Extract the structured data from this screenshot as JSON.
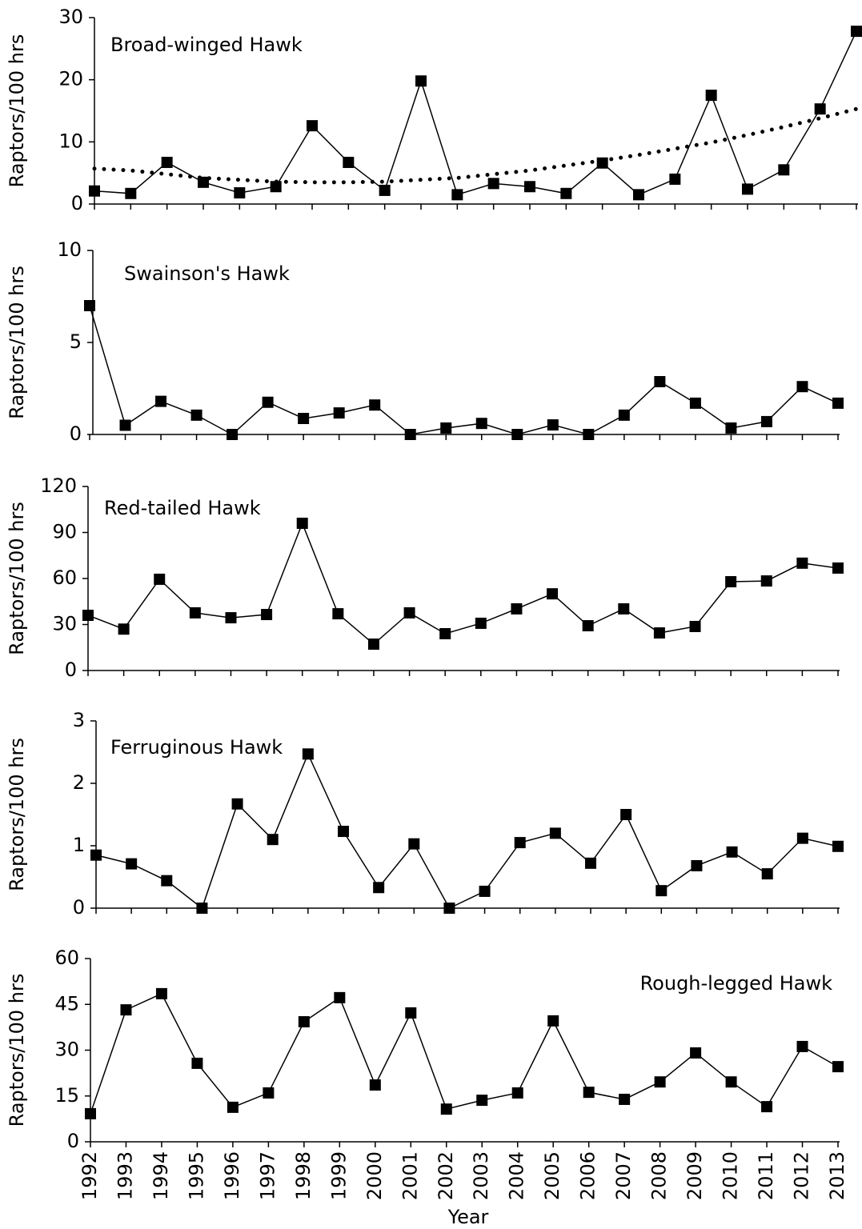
{
  "chart_data": [
    {
      "type": "line",
      "annotation": "Broad-winged Hawk",
      "ylabel": "Raptors/100 hrs",
      "ylim": [
        0,
        30
      ],
      "yticks": [
        0,
        10,
        20,
        30
      ],
      "series": [
        {
          "color": "#000000",
          "marker": "square",
          "values": [
            2.1,
            1.7,
            6.7,
            3.5,
            1.8,
            2.8,
            12.6,
            6.7,
            2.2,
            19.8,
            1.5,
            3.3,
            2.8,
            1.7,
            6.6,
            1.5,
            4.0,
            17.5,
            2.4,
            5.5,
            15.3,
            27.8
          ]
        },
        {
          "color": "#000000",
          "style": "dotted",
          "values": [
            5.7,
            5.4,
            4.8,
            4.2,
            3.9,
            3.6,
            3.5,
            3.5,
            3.6,
            3.9,
            4.2,
            4.8,
            5.4,
            6.2,
            7.0,
            7.9,
            8.9,
            9.9,
            11.1,
            12.4,
            13.8,
            15.3
          ]
        }
      ]
    },
    {
      "type": "line",
      "annotation": "Swainson's Hawk",
      "ylabel": "Raptors/100 hrs",
      "ylim": [
        0,
        10
      ],
      "yticks": [
        0,
        5,
        10
      ],
      "series": [
        {
          "color": "#000000",
          "marker": "square",
          "values": [
            7.0,
            0.5,
            1.8,
            1.05,
            0,
            1.75,
            0.87,
            1.17,
            1.6,
            0,
            0.35,
            0.6,
            0,
            0.52,
            0,
            1.05,
            2.87,
            1.7,
            0.35,
            0.7,
            2.6,
            1.7
          ]
        }
      ]
    },
    {
      "type": "line",
      "annotation": "Red-tailed Hawk",
      "ylabel": "Raptors/100 hrs",
      "ylim": [
        0,
        120
      ],
      "yticks": [
        0,
        30,
        60,
        90,
        120
      ],
      "series": [
        {
          "color": "#000000",
          "marker": "square",
          "values": [
            36,
            27,
            59.5,
            37.6,
            34.4,
            36.5,
            96,
            37,
            17.2,
            37.6,
            24,
            30.8,
            40.2,
            50,
            29.2,
            40.2,
            24.5,
            28.7,
            57.9,
            58.4,
            70,
            66.8
          ]
        }
      ]
    },
    {
      "type": "line",
      "annotation": "Ferruginous Hawk",
      "ylabel": "Raptors/100 hrs",
      "ylim": [
        0,
        3
      ],
      "yticks": [
        0,
        1,
        2,
        3
      ],
      "series": [
        {
          "color": "#000000",
          "marker": "square",
          "values": [
            0.85,
            0.71,
            0.44,
            0,
            1.67,
            1.1,
            2.47,
            1.23,
            0.33,
            1.03,
            0,
            0.27,
            1.05,
            1.2,
            0.72,
            1.5,
            0.28,
            0.68,
            0.9,
            0.55,
            1.12,
            0.99
          ]
        }
      ]
    },
    {
      "type": "line",
      "annotation": "Rough-legged Hawk",
      "ylabel": "Raptors/100 hrs",
      "xlabel": "Year",
      "ylim": [
        0,
        60
      ],
      "yticks": [
        0,
        15,
        30,
        45,
        60
      ],
      "categories": [
        "1992",
        "1993",
        "1994",
        "1995",
        "1996",
        "1997",
        "1998",
        "1999",
        "2000",
        "2001",
        "2002",
        "2003",
        "2004",
        "2005",
        "2006",
        "2007",
        "2008",
        "2009",
        "2010",
        "2011",
        "2012",
        "2013"
      ],
      "series": [
        {
          "color": "#000000",
          "marker": "square",
          "values": [
            9.2,
            43.2,
            48.5,
            25.7,
            11.3,
            16,
            39.3,
            47.2,
            18.6,
            42.2,
            10.7,
            13.6,
            16,
            39.6,
            16.2,
            13.9,
            19.6,
            29.1,
            19.6,
            11.5,
            31.2,
            24.6
          ]
        }
      ]
    }
  ]
}
